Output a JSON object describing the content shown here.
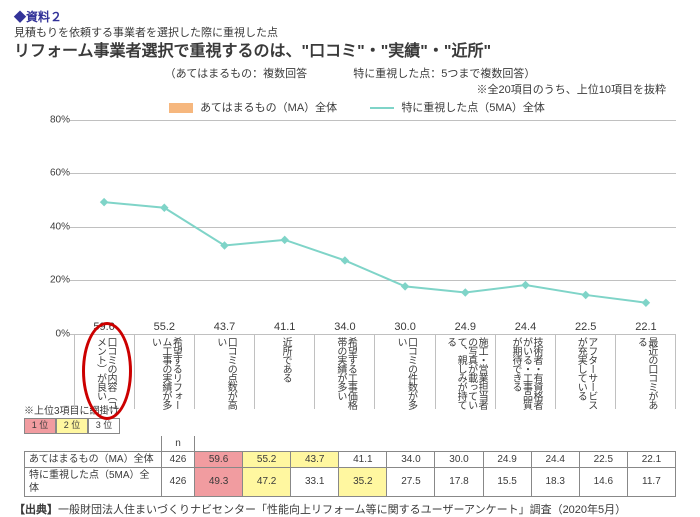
{
  "header": {
    "label": "◆資料２",
    "sub": "見積もりを依頼する事業者を選択した際に重視した点",
    "title": "リフォーム事業者選択で重視するのは、\"口コミ\"・\"実績\"・\"近所\""
  },
  "meta": {
    "left": "（あてはまるもの：複数回答",
    "right": "特に重視した点：5つまで複数回答）",
    "note": "※全20項目のうち、上位10項目を抜粋"
  },
  "legend": {
    "bar": "あてはまるもの（MA）全体",
    "line": "特に重視した点（5MA）全体"
  },
  "chart": {
    "ylim": [
      0,
      80
    ],
    "ytick_step": 20,
    "bar_color": "#f6b77e",
    "line_color": "#7fd4c8",
    "grid_color": "#c0c0c0",
    "categories": [
      "口コミの内容（コメント）が良い",
      "希望するリフォーム工事の実績が多い",
      "口コミの点数が高い",
      "近所である",
      "希望する工事価格帯の実績が多い",
      "口コミの件数が多い",
      "施工・営業担当者の写真が載っていて、親しみが持てる",
      "技術者・有資格者がいる・工事品質が期待できる",
      "アフターサービスが充実している",
      "最近の口コミがある"
    ],
    "bar_values": [
      59.6,
      55.2,
      43.7,
      41.1,
      34.0,
      30.0,
      24.9,
      24.4,
      22.5,
      22.1
    ],
    "line_values": [
      49.3,
      47.2,
      33.1,
      35.2,
      27.5,
      17.8,
      15.5,
      18.3,
      14.6,
      11.7
    ]
  },
  "rank": {
    "note": "※上位3項目に網掛け",
    "items": [
      "1 位",
      "2 位",
      "3 位"
    ],
    "colors": [
      "#f19ca0",
      "#fff7a0",
      "#ffffff"
    ]
  },
  "table": {
    "rows": [
      {
        "label": "あてはまるもの（MA）全体",
        "n": "426",
        "vals": [
          "59.6",
          "55.2",
          "43.7",
          "41.1",
          "34.0",
          "30.0",
          "24.9",
          "24.4",
          "22.5",
          "22.1"
        ],
        "hl": [
          0,
          1,
          2
        ]
      },
      {
        "label": "特に重視した点（5MA）全体",
        "n": "426",
        "vals": [
          "49.3",
          "47.2",
          "33.1",
          "35.2",
          "27.5",
          "17.8",
          "15.5",
          "18.3",
          "14.6",
          "11.7"
        ],
        "hl": [
          0,
          1,
          3
        ]
      }
    ],
    "hl_colors": [
      "#f19ca0",
      "#fff7a0",
      "#fff7a0"
    ]
  },
  "footer": "【出典】一般財団法人住まいづくりナビセンター「性能向上リフォーム等に関するユーザーアンケート」調査（2020年5月）"
}
